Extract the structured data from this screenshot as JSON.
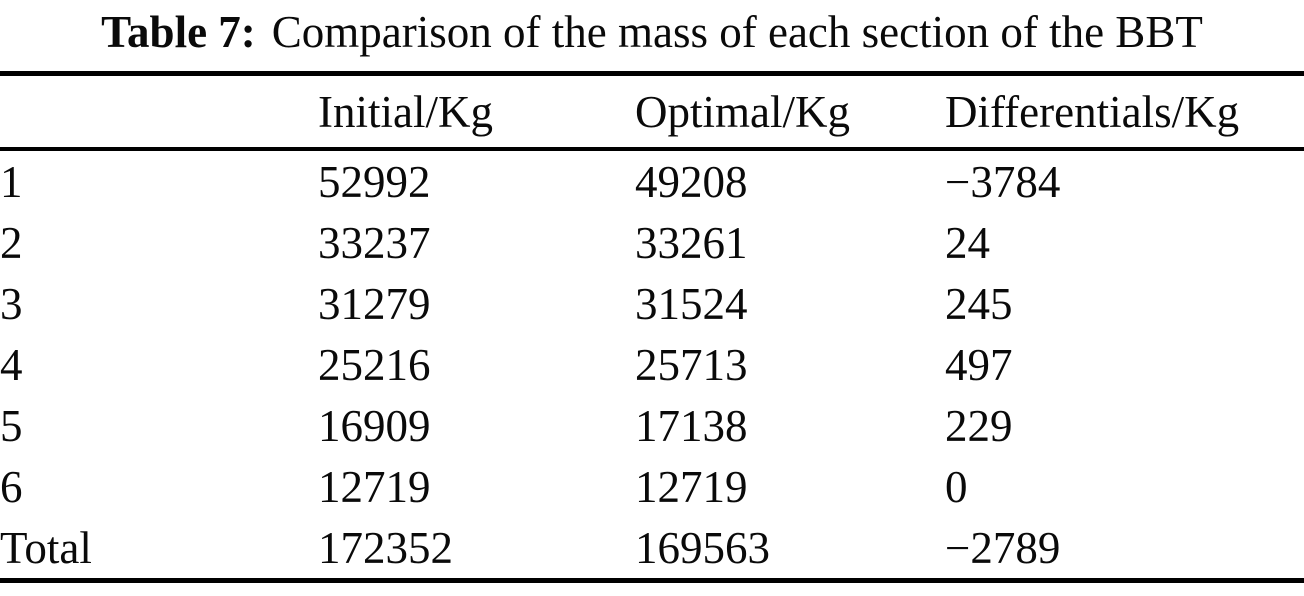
{
  "colors": {
    "text": "#0a0a0a",
    "background": "#ffffff",
    "rule": "#000000"
  },
  "caption": {
    "label": "Table 7:",
    "text": "Comparison of the mass of each section of the BBT"
  },
  "table": {
    "columns": [
      "",
      "Initial/Kg",
      "Optimal/Kg",
      "Differentials/Kg"
    ],
    "rows": [
      [
        "1",
        "52992",
        "49208",
        "−3784"
      ],
      [
        "2",
        "33237",
        "33261",
        "24"
      ],
      [
        "3",
        "31279",
        "31524",
        "245"
      ],
      [
        "4",
        "25216",
        "25713",
        "497"
      ],
      [
        "5",
        "16909",
        "17138",
        "229"
      ],
      [
        "6",
        "12719",
        "12719",
        "0"
      ],
      [
        "Total",
        "172352",
        "169563",
        "−2789"
      ]
    ]
  }
}
